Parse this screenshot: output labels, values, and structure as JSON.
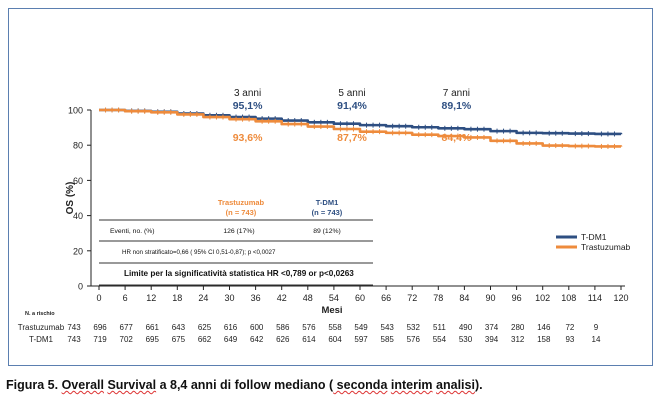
{
  "chart_data": {
    "type": "line",
    "ylabel": "OS (%)",
    "xlabel": "Mesi",
    "xlim": [
      0,
      120
    ],
    "ylim": [
      0,
      100
    ],
    "x_ticks": [
      0,
      6,
      12,
      18,
      24,
      30,
      36,
      42,
      48,
      54,
      60,
      66,
      72,
      78,
      84,
      90,
      96,
      102,
      108,
      114,
      120
    ],
    "y_ticks": [
      0,
      20,
      40,
      60,
      80,
      100
    ],
    "legend_position": "bottom-right",
    "series": [
      {
        "name": "T-DM1",
        "color": "#2e4f82",
        "points": [
          [
            0,
            100
          ],
          [
            6,
            99.5
          ],
          [
            12,
            99
          ],
          [
            18,
            98
          ],
          [
            24,
            97
          ],
          [
            30,
            96
          ],
          [
            36,
            95.1
          ],
          [
            42,
            94
          ],
          [
            48,
            93
          ],
          [
            54,
            92.2
          ],
          [
            60,
            91.4
          ],
          [
            66,
            90.8
          ],
          [
            72,
            90.2
          ],
          [
            78,
            89.6
          ],
          [
            84,
            89.1
          ],
          [
            90,
            88
          ],
          [
            96,
            87
          ],
          [
            102,
            86.8
          ],
          [
            108,
            86.6
          ],
          [
            114,
            86.4
          ],
          [
            120,
            86.2
          ]
        ]
      },
      {
        "name": "Trastuzumab",
        "color": "#ee8b3c",
        "points": [
          [
            0,
            100
          ],
          [
            6,
            99.3
          ],
          [
            12,
            98.7
          ],
          [
            18,
            97.5
          ],
          [
            24,
            96
          ],
          [
            30,
            94.8
          ],
          [
            36,
            93.6
          ],
          [
            42,
            92
          ],
          [
            48,
            90.6
          ],
          [
            54,
            89.2
          ],
          [
            60,
            87.7
          ],
          [
            66,
            87
          ],
          [
            72,
            86
          ],
          [
            78,
            85.2
          ],
          [
            84,
            84.4
          ],
          [
            90,
            82.5
          ],
          [
            96,
            81
          ],
          [
            102,
            79.8
          ],
          [
            108,
            79.5
          ],
          [
            114,
            79.3
          ],
          [
            120,
            79.2
          ]
        ]
      }
    ],
    "annotations": [
      {
        "label": "3 anni",
        "x": 36,
        "tdm1": "95,1%",
        "trastuzumab": "93,6%"
      },
      {
        "label": "5 anni",
        "x": 60,
        "tdm1": "91,4%",
        "trastuzumab": "87,7%"
      },
      {
        "label": "7 anni",
        "x": 84,
        "tdm1": "89,1%",
        "trastuzumab": "84,4%"
      }
    ],
    "stats_table": {
      "col1_header": "Trastuzumab",
      "col1_sub": "(n = 743)",
      "col2_header": "T-DM1",
      "col2_sub": "(n = 743)",
      "row_label": "Eventi, no. (%)",
      "col1_value": "126 (17%)",
      "col2_value": "89 (12%)",
      "hr_text": "HR non stratificato=0,66  ( 95% CI 0,51-0,87); p <0,0027",
      "limit_text": "Limite per la significatività statistica HR <0,789 or p<0,0263"
    },
    "at_risk": {
      "header": "N. a rischio",
      "rows": [
        {
          "label": "Trastuzumab",
          "values": [
            "743",
            "696",
            "677",
            "661",
            "643",
            "625",
            "616",
            "600",
            "586",
            "576",
            "558",
            "549",
            "543",
            "532",
            "511",
            "490",
            "374",
            "280",
            "146",
            "72",
            "9"
          ]
        },
        {
          "label": "T-DM1",
          "values": [
            "743",
            "719",
            "702",
            "695",
            "675",
            "662",
            "649",
            "642",
            "626",
            "614",
            "604",
            "597",
            "585",
            "576",
            "554",
            "530",
            "394",
            "312",
            "158",
            "93",
            "14"
          ]
        }
      ]
    }
  },
  "caption": {
    "prefix": "Figura 5. ",
    "w1": "Overall",
    "w2": "Survival",
    "mid": " a 8,4 anni di follow mediano (",
    "w3": " seconda",
    "w4": "interim",
    "w5": "analisi",
    "suffix": ")."
  }
}
